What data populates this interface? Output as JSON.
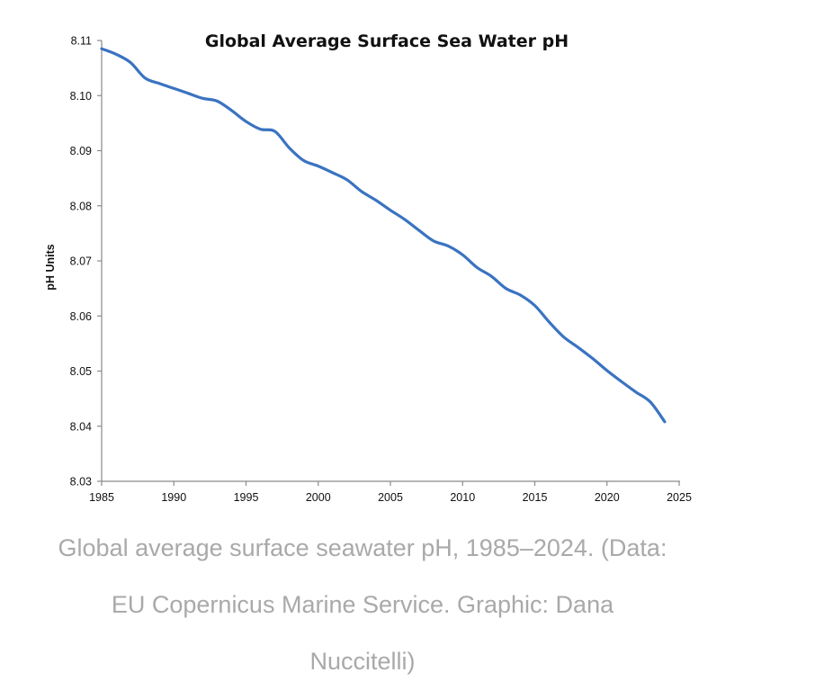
{
  "chart_data": {
    "type": "line",
    "title": "Global Average Surface Sea Water pH",
    "xlabel": "",
    "ylabel": "pH Units",
    "xlim": [
      1985,
      2025
    ],
    "ylim": [
      8.03,
      8.11
    ],
    "x_ticks": [
      "1985",
      "1990",
      "1995",
      "2000",
      "2005",
      "2010",
      "2015",
      "2020",
      "2025"
    ],
    "y_ticks": [
      "8.03",
      "8.04",
      "8.05",
      "8.06",
      "8.07",
      "8.08",
      "8.09",
      "8.10",
      "8.11"
    ],
    "grid": false,
    "series": [
      {
        "color": "#3a73c1",
        "x": [
          1985,
          1986,
          1987,
          1988,
          1989,
          1990,
          1991,
          1992,
          1993,
          1994,
          1995,
          1996,
          1997,
          1998,
          1999,
          2000,
          2001,
          2002,
          2003,
          2004,
          2005,
          2006,
          2007,
          2008,
          2009,
          2010,
          2011,
          2012,
          2013,
          2014,
          2015,
          2016,
          2017,
          2018,
          2019,
          2020,
          2021,
          2022,
          2023,
          2024
        ],
        "values": [
          8.1085,
          8.1075,
          8.106,
          8.1032,
          8.1022,
          8.1013,
          8.1004,
          8.0995,
          8.099,
          8.0973,
          8.0953,
          8.0939,
          8.0935,
          8.0905,
          8.0882,
          8.0872,
          8.086,
          8.0847,
          8.0826,
          8.081,
          8.0792,
          8.0775,
          8.0755,
          8.0736,
          8.0727,
          8.0711,
          8.0688,
          8.0672,
          8.065,
          8.0638,
          8.0619,
          8.0589,
          8.0562,
          8.0543,
          8.0523,
          8.0501,
          8.0481,
          8.0462,
          8.0444,
          8.0408
        ]
      }
    ]
  },
  "caption": {
    "line1": "Global average surface seawater pH, 1985–2024. (Data:",
    "line2": "EU Copernicus Marine Service. Graphic: Dana",
    "line3": "Nuccitelli)"
  }
}
